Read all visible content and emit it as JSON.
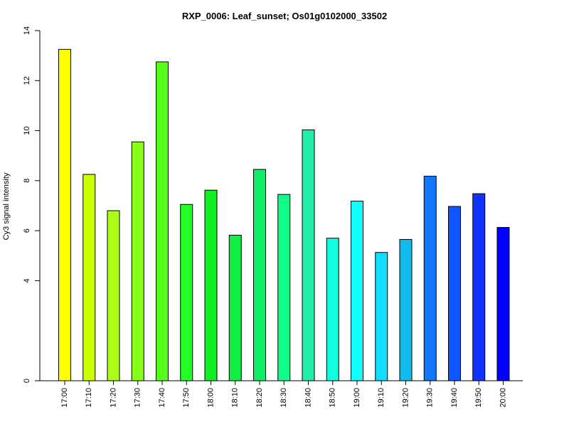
{
  "chart_data": {
    "type": "bar",
    "title": "RXP_0006: Leaf_sunset; Os01g0102000_33502",
    "xlabel": "",
    "ylabel": "Cy3 signal intensity",
    "ylim": [
      0,
      14
    ],
    "yticks": [
      0,
      4,
      6,
      8,
      10,
      12,
      14
    ],
    "categories": [
      "17:00",
      "17:10",
      "17:20",
      "17:30",
      "17:40",
      "17:50",
      "18:00",
      "18:10",
      "18:20",
      "18:30",
      "18:40",
      "18:50",
      "19:00",
      "19:10",
      "19:20",
      "19:30",
      "19:40",
      "19:50",
      "20:00"
    ],
    "values": [
      13.25,
      8.25,
      6.8,
      9.55,
      12.75,
      7.05,
      7.62,
      5.82,
      8.45,
      7.45,
      10.03,
      5.7,
      7.18,
      5.13,
      5.65,
      8.18,
      6.97,
      7.48,
      6.13
    ],
    "colors": [
      "#FFFF00",
      "#CCFF00",
      "#AAFF1A",
      "#88FF1A",
      "#55FF1A",
      "#22FF22",
      "#11EE22",
      "#11EE44",
      "#11EE66",
      "#11FF88",
      "#22EEAA",
      "#11FFDD",
      "#11FFFF",
      "#11DDFF",
      "#11BBEE",
      "#1177FF",
      "#1155FF",
      "#1133FF",
      "#0000FF"
    ],
    "grid": false,
    "legend": "none"
  }
}
